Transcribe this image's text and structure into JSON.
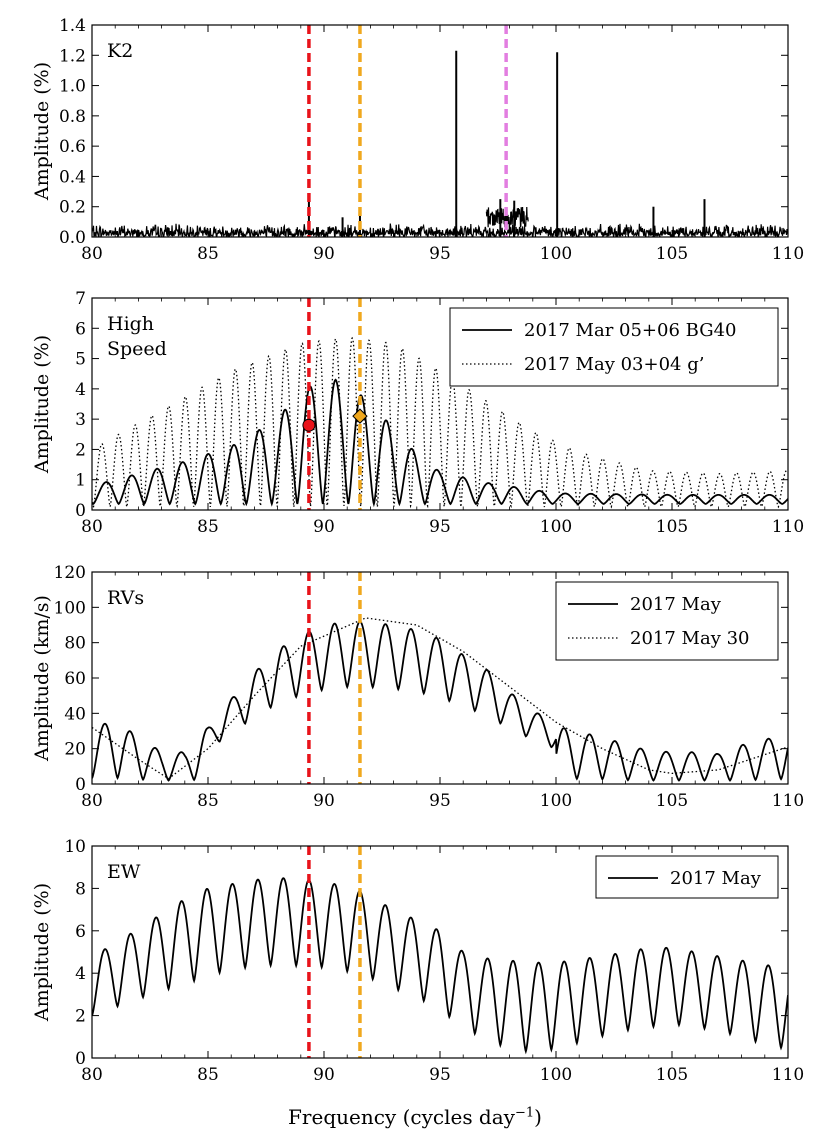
{
  "chart_data": [
    {
      "type": "line",
      "panel_label": "K2",
      "ylabel": "Amplitude (%)",
      "xlim": [
        80,
        110
      ],
      "ylim": [
        0,
        1.4
      ],
      "x_ticks": [
        80,
        85,
        90,
        95,
        100,
        105,
        110
      ],
      "y_ticks": [
        "0.0",
        "0.2",
        "0.4",
        "0.6",
        "0.8",
        "1.0",
        "1.2",
        "1.4"
      ],
      "y_tick_values": [
        0,
        0.2,
        0.4,
        0.6,
        0.8,
        1.0,
        1.2,
        1.4
      ],
      "vlines": [
        {
          "x": 89.35,
          "color": "#e8131a"
        },
        {
          "x": 91.55,
          "color": "#f0a81e"
        },
        {
          "x": 97.85,
          "color": "#e27ee0"
        }
      ],
      "noise_level": 0.07,
      "peaks": [
        {
          "x": 89.35,
          "y": 0.25
        },
        {
          "x": 90.8,
          "y": 0.13
        },
        {
          "x": 91.55,
          "y": 0.17
        },
        {
          "x": 95.7,
          "y": 1.23
        },
        {
          "x": 97.6,
          "y": 0.25
        },
        {
          "x": 98.2,
          "y": 0.24
        },
        {
          "x": 100.05,
          "y": 1.22
        },
        {
          "x": 104.2,
          "y": 0.2
        },
        {
          "x": 106.4,
          "y": 0.25
        }
      ],
      "series": [
        {
          "name": "K2",
          "style": "solid"
        }
      ],
      "legend": null
    },
    {
      "type": "line",
      "panel_label": [
        "High",
        "Speed"
      ],
      "ylabel": "Amplitude (%)",
      "xlim": [
        80,
        110
      ],
      "ylim": [
        0,
        7
      ],
      "x_ticks": [
        80,
        85,
        90,
        95,
        100,
        105,
        110
      ],
      "y_ticks": [
        "0",
        "1",
        "2",
        "3",
        "4",
        "5",
        "6",
        "7"
      ],
      "y_tick_values": [
        0,
        1,
        2,
        3,
        4,
        5,
        6,
        7
      ],
      "vlines": [
        {
          "x": 89.35,
          "color": "#e8131a"
        },
        {
          "x": 91.55,
          "color": "#f0a81e"
        }
      ],
      "markers": [
        {
          "x": 89.35,
          "y": 2.8,
          "shape": "circle",
          "color": "#e8131a"
        },
        {
          "x": 91.55,
          "y": 3.1,
          "shape": "diamond",
          "color": "#f0a81e"
        }
      ],
      "series": [
        {
          "name": "2017 Mar 05+06 BG40",
          "style": "solid",
          "spacing": 1.1,
          "phase": 90.5,
          "envelope": [
            [
              80,
              0.8
            ],
            [
              84,
              1.6
            ],
            [
              86,
              2.1
            ],
            [
              88,
              3.0
            ],
            [
              89,
              4.0
            ],
            [
              90.5,
              4.3
            ],
            [
              92,
              3.6
            ],
            [
              93.5,
              2.2
            ],
            [
              95,
              1.25
            ],
            [
              97,
              0.9
            ],
            [
              100,
              0.55
            ],
            [
              105,
              0.5
            ],
            [
              110,
              0.5
            ]
          ],
          "floor": 0.2
        },
        {
          "name": "2017 May 03+04 g’",
          "style": "dotted",
          "spacing": 0.72,
          "phase": 90.5,
          "envelope": [
            [
              80,
              2.0
            ],
            [
              83,
              3.3
            ],
            [
              86,
              4.6
            ],
            [
              89,
              5.5
            ],
            [
              91,
              5.7
            ],
            [
              93,
              5.5
            ],
            [
              95,
              4.6
            ],
            [
              97,
              3.6
            ],
            [
              99,
              2.6
            ],
            [
              101,
              1.9
            ],
            [
              104,
              1.3
            ],
            [
              107,
              1.2
            ],
            [
              110,
              1.3
            ]
          ],
          "floor": 0.1
        }
      ],
      "legend": {
        "placement": "top-right",
        "entries": [
          "2017 Mar 05+06 BG40",
          "2017 May 03+04 g’"
        ]
      }
    },
    {
      "type": "line",
      "panel_label": "RVs",
      "ylabel": "Amplitude (km/s)",
      "xlim": [
        80,
        110
      ],
      "ylim": [
        0,
        120
      ],
      "x_ticks": [
        80,
        85,
        90,
        95,
        100,
        105,
        110
      ],
      "y_ticks": [
        "0",
        "20",
        "40",
        "60",
        "80",
        "100",
        "120"
      ],
      "y_tick_values": [
        0,
        20,
        40,
        60,
        80,
        100,
        120
      ],
      "vlines": [
        {
          "x": 89.35,
          "color": "#e8131a"
        },
        {
          "x": 91.55,
          "color": "#f0a81e"
        }
      ],
      "series": [
        {
          "name": "2017 May",
          "style": "solid",
          "spacing": 1.1,
          "phase": 91.55,
          "envelope": [
            [
              80,
              33
            ],
            [
              81,
              35
            ],
            [
              82,
              27
            ],
            [
              83,
              18
            ],
            [
              84,
              18
            ],
            [
              85,
              32
            ],
            [
              86,
              48
            ],
            [
              87,
              63
            ],
            [
              88,
              76
            ],
            [
              89.3,
              86
            ],
            [
              90.5,
              91
            ],
            [
              91.55,
              92
            ],
            [
              93,
              90
            ],
            [
              94,
              87
            ],
            [
              95,
              82
            ],
            [
              96,
              73
            ],
            [
              97,
              65
            ],
            [
              98,
              52
            ],
            [
              99,
              42
            ],
            [
              100,
              33
            ],
            [
              101,
              29
            ],
            [
              102,
              27
            ],
            [
              103,
              22
            ],
            [
              104,
              19
            ],
            [
              105,
              18
            ],
            [
              106,
              18
            ],
            [
              107,
              17
            ],
            [
              108,
              22
            ],
            [
              109,
              25
            ],
            [
              110,
              29
            ]
          ],
          "floor_ratio": 0.55
        },
        {
          "name": "2017 May 30",
          "style": "dotted",
          "points": [
            [
              80,
              32
            ],
            [
              82,
              14
            ],
            [
              83.3,
              3
            ],
            [
              85,
              20
            ],
            [
              87,
              50
            ],
            [
              89,
              78
            ],
            [
              91.8,
              94
            ],
            [
              94,
              90
            ],
            [
              96,
              75
            ],
            [
              98,
              55
            ],
            [
              100,
              35
            ],
            [
              102,
              20
            ],
            [
              104,
              8
            ],
            [
              105,
              6
            ],
            [
              107,
              8
            ],
            [
              110,
              21
            ]
          ]
        }
      ],
      "legend": {
        "placement": "top-right",
        "entries": [
          "2017 May",
          "2017 May 30"
        ]
      }
    },
    {
      "type": "line",
      "panel_label": "EW",
      "ylabel": "Amplitude (%)",
      "xlim": [
        80,
        110
      ],
      "ylim": [
        0,
        10
      ],
      "x_ticks": [
        80,
        85,
        90,
        95,
        100,
        105,
        110
      ],
      "y_ticks": [
        "0",
        "2",
        "4",
        "6",
        "8",
        "10"
      ],
      "y_tick_values": [
        0,
        2,
        4,
        6,
        8,
        10
      ],
      "vlines": [
        {
          "x": 89.35,
          "color": "#e8131a"
        },
        {
          "x": 91.55,
          "color": "#f0a81e"
        }
      ],
      "series": [
        {
          "name": "2017 May",
          "style": "solid",
          "spacing": 1.1,
          "phase": 89.35,
          "envelope": [
            [
              80,
              4.8
            ],
            [
              81,
              5.4
            ],
            [
              82,
              6.1
            ],
            [
              83,
              6.8
            ],
            [
              84,
              7.5
            ],
            [
              85,
              8.0
            ],
            [
              87,
              8.4
            ],
            [
              88,
              8.5
            ],
            [
              89.3,
              8.4
            ],
            [
              90.5,
              8.2
            ],
            [
              91.5,
              7.9
            ],
            [
              93,
              7.0
            ],
            [
              95,
              6.0
            ],
            [
              96,
              5.0
            ],
            [
              97,
              4.7
            ],
            [
              99,
              4.5
            ],
            [
              100,
              4.5
            ],
            [
              102,
              4.8
            ],
            [
              104,
              5.2
            ],
            [
              105,
              5.2
            ],
            [
              107,
              4.8
            ],
            [
              110,
              4.2
            ]
          ],
          "troughs": [
            [
              80,
              2.0
            ],
            [
              82,
              2.8
            ],
            [
              84,
              3.5
            ],
            [
              86,
              4.2
            ],
            [
              88,
              4.4
            ],
            [
              89.8,
              4.3
            ],
            [
              91.5,
              4.0
            ],
            [
              93,
              3.3
            ],
            [
              94.5,
              2.6
            ],
            [
              96,
              1.5
            ],
            [
              97,
              0.8
            ],
            [
              98.5,
              0.3
            ],
            [
              100,
              0.4
            ],
            [
              101.5,
              0.9
            ],
            [
              103,
              1.3
            ],
            [
              105,
              1.6
            ],
            [
              107,
              1.3
            ],
            [
              108.5,
              0.8
            ],
            [
              110,
              0.4
            ]
          ]
        }
      ],
      "legend": {
        "placement": "top-right",
        "entries": [
          "2017 May"
        ]
      }
    }
  ],
  "xlabel": {
    "text": "Frequency (cycles day",
    "superscript": "−1",
    "suffix": ")"
  }
}
